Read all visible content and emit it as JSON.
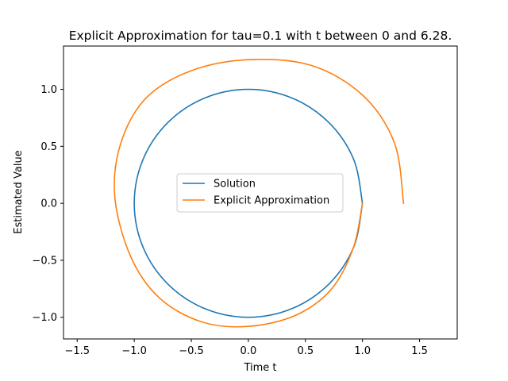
{
  "chart_data": {
    "type": "line",
    "title": "Explicit Approximation for tau=0.1 with t between 0 and 6.28.",
    "xlabel": "Time t",
    "ylabel": "Estimated Value",
    "xlim": [
      -1.62,
      1.83
    ],
    "ylim": [
      -1.19,
      1.38
    ],
    "xticks": [
      -1.5,
      -1.0,
      -0.5,
      0.0,
      0.5,
      1.0,
      1.5
    ],
    "xtick_labels": [
      "−1.5",
      "−1.0",
      "−0.5",
      "0.0",
      "0.5",
      "1.0",
      "1.5"
    ],
    "yticks": [
      -1.0,
      -0.5,
      0.0,
      0.5,
      1.0
    ],
    "ytick_labels": [
      "−1.0",
      "−0.5",
      "0.0",
      "0.5",
      "1.0"
    ],
    "grid": false,
    "legend_position": "center",
    "series": [
      {
        "name": "Solution",
        "color": "#1f77b4",
        "x": [
          1.0,
          0.9239,
          0.7071,
          0.3827,
          0.0,
          -0.3827,
          -0.7071,
          -0.9239,
          -1.0,
          -0.9239,
          -0.7071,
          -0.3827,
          0.0,
          0.3827,
          0.7071,
          0.9239,
          1.0
        ],
        "y": [
          0.0,
          -0.3827,
          -0.7071,
          -0.9239,
          -1.0,
          -0.9239,
          -0.7071,
          -0.3827,
          0.0,
          0.3827,
          0.7071,
          0.9239,
          1.0,
          0.9239,
          0.7071,
          0.3827,
          0.0
        ]
      },
      {
        "name": "Explicit Approximation",
        "color": "#ff7f0e",
        "x": [
          1.0,
          0.92,
          0.73,
          0.42,
          0.0,
          -0.41,
          -0.78,
          -1.03,
          -1.17,
          -1.12,
          -0.9,
          -0.51,
          0.0,
          0.55,
          1.0,
          1.28,
          1.36
        ],
        "y": [
          0.0,
          -0.39,
          -0.75,
          -0.98,
          -1.08,
          -1.04,
          -0.83,
          -0.47,
          0.05,
          0.52,
          0.92,
          1.16,
          1.26,
          1.21,
          0.95,
          0.53,
          0.0
        ]
      }
    ]
  }
}
